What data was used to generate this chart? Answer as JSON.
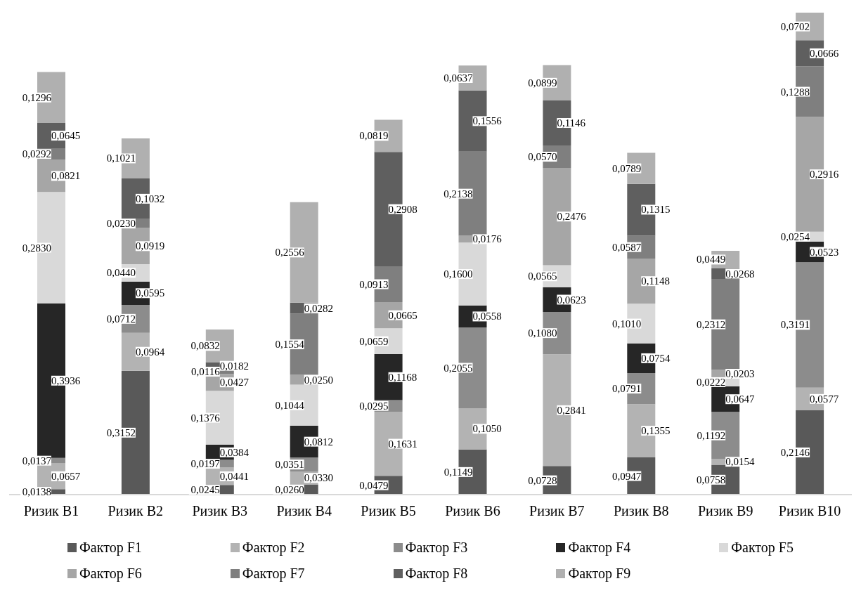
{
  "chart_data": {
    "type": "bar",
    "stacked": true,
    "legend": "bottom",
    "grid": false,
    "categories": [
      "Ризик B1",
      "Ризик B2",
      "Ризик B3",
      "Ризик B4",
      "Ризик B5",
      "Ризик B6",
      "Ризик B7",
      "Ризик B8",
      "Ризик B9",
      "Ризик B10"
    ],
    "series": [
      {
        "name": "Фактор F1",
        "color": "#595959",
        "values": [
          0.0138,
          0.3152,
          0.0245,
          0.026,
          0.0479,
          0.1149,
          0.0728,
          0.0947,
          0.0758,
          0.2146
        ],
        "value_labels": [
          "0,0138",
          "0,3152",
          "0,0245",
          "0,0260",
          "0,0479",
          "0,1149",
          "0,0728",
          "0,0947",
          "0,0758",
          "0,2146"
        ]
      },
      {
        "name": "Фактор F2",
        "color": "#b3b3b3",
        "values": [
          0.0657,
          0.0964,
          0.0441,
          0.033,
          0.1631,
          0.105,
          0.2841,
          0.1355,
          0.0154,
          0.0577
        ],
        "value_labels": [
          "0,0657",
          "0,0964",
          "0,0441",
          "0,0330",
          "0,1631",
          "0,1050",
          "0,2841",
          "0,1355",
          "0,0154",
          "0,0577"
        ]
      },
      {
        "name": "Фактор F3",
        "color": "#8c8c8c",
        "values": [
          0.0137,
          0.0712,
          0.0197,
          0.0351,
          0.0295,
          0.2055,
          0.108,
          0.0791,
          0.1192,
          0.3191
        ],
        "value_labels": [
          "0,0137",
          "0,0712",
          "0,0197",
          "0,0351",
          "0,0295",
          "0,2055",
          "0,1080",
          "0,0791",
          "0,1192",
          "0,3191"
        ]
      },
      {
        "name": "Фактор F4",
        "color": "#262626",
        "values": [
          0.3936,
          0.0595,
          0.0384,
          0.0812,
          0.1168,
          0.0558,
          0.0623,
          0.0754,
          0.0647,
          0.0523
        ],
        "value_labels": [
          "0,3936",
          "0,0595",
          "0,0384",
          "0,0812",
          "0,1168",
          "0,0558",
          "0,0623",
          "0,0754",
          "0,0647",
          "0,0523"
        ]
      },
      {
        "name": "Фактор F5",
        "color": "#d9d9d9",
        "values": [
          0.283,
          0.044,
          0.1376,
          0.1044,
          0.0659,
          0.16,
          0.0565,
          0.101,
          0.0222,
          0.0254
        ],
        "value_labels": [
          "0,2830",
          "0,0440",
          "0,1376",
          "0,1044",
          "0,0659",
          "0,1600",
          "0,0565",
          "0,1010",
          "0,0222",
          "0,0254"
        ]
      },
      {
        "name": "Фактор F6",
        "color": "#a6a6a6",
        "values": [
          0.0821,
          0.0919,
          0.0427,
          0.025,
          0.0665,
          0.0176,
          0.2476,
          0.1148,
          0.0203,
          0.2916
        ],
        "value_labels": [
          "0,0821",
          "0,0919",
          "0,0427",
          "0,0250",
          "0,0665",
          "0,0176",
          "0,2476",
          "0,1148",
          "0,0203",
          "0,2916"
        ]
      },
      {
        "name": "Фактор F7",
        "color": "#7f7f7f",
        "values": [
          0.0292,
          0.023,
          0.0116,
          0.1554,
          0.0913,
          0.2138,
          0.057,
          0.0587,
          0.2312,
          0.1288
        ],
        "value_labels": [
          "0,0292",
          "0,0230",
          "0,0116",
          "0,1554",
          "0,0913",
          "0,2138",
          "0,0570",
          "0,0587",
          "0,2312",
          "0,1288"
        ]
      },
      {
        "name": "Фактор F8",
        "color": "#5f5f5f",
        "values": [
          0.0645,
          0.1032,
          0.0182,
          0.0282,
          0.2908,
          0.1556,
          0.1146,
          0.1315,
          0.0268,
          0.0666
        ],
        "value_labels": [
          "0,0645",
          "0,1032",
          "0,0182",
          "0,0282",
          "0,2908",
          "0,1556",
          "0,1146",
          "0,1315",
          "0,0268",
          "0,0666"
        ]
      },
      {
        "name": "Фактор F9",
        "color": "#b0b0b0",
        "values": [
          0.1296,
          0.1021,
          0.0832,
          0.2556,
          0.0819,
          0.0637,
          0.0899,
          0.0789,
          0.0449,
          0.0702
        ],
        "value_labels": [
          "0,1296",
          "0,1021",
          "0,0832",
          "0,2556",
          "0,0819",
          "0,0637",
          "0,0899",
          "0,0789",
          "0,0449",
          "0,0702"
        ]
      }
    ]
  }
}
